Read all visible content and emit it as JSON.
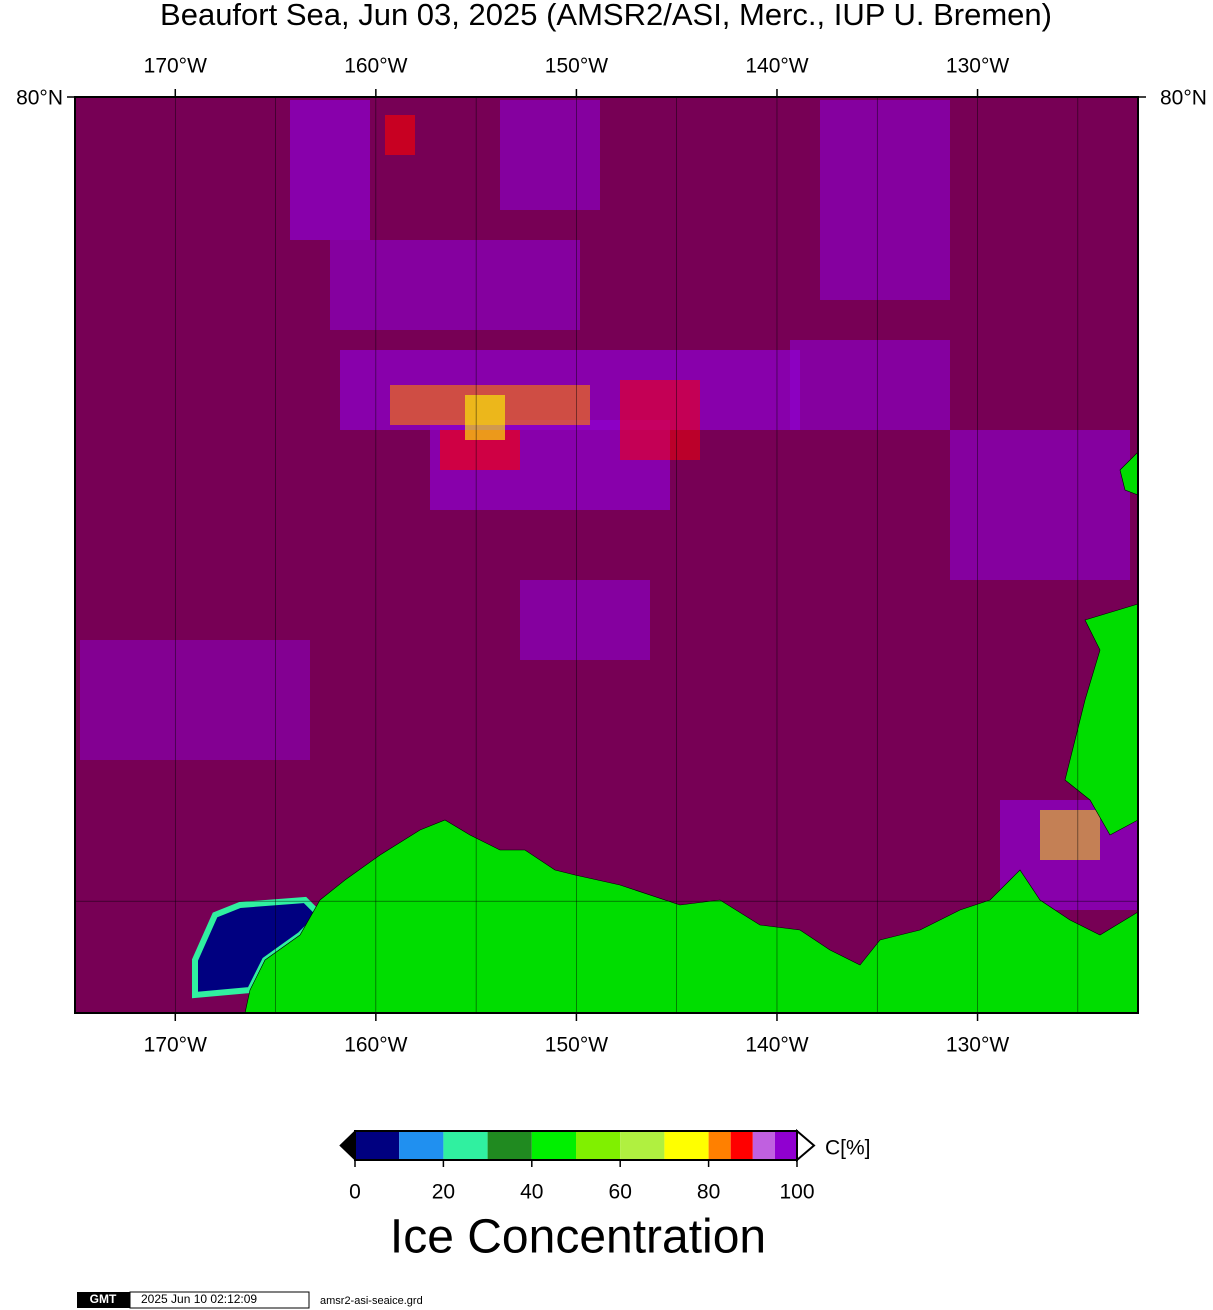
{
  "title": "Beaufort Sea, Jun 03, 2025 (AMSR2/ASI, Merc., IUP U. Bremen)",
  "map": {
    "xlim": [
      -175,
      -122
    ],
    "ylim": [
      68,
      80
    ],
    "xticks": [
      {
        "value": -170,
        "label": "170°W"
      },
      {
        "value": -160,
        "label": "160°W"
      },
      {
        "value": -150,
        "label": "150°W"
      },
      {
        "value": -140,
        "label": "140°W"
      },
      {
        "value": -130,
        "label": "130°W"
      }
    ],
    "yticks": [
      {
        "value": 80,
        "label": "80°N"
      }
    ],
    "xgrid": [
      -170,
      -165,
      -160,
      -155,
      -150,
      -145,
      -140,
      -135,
      -130,
      -125
    ],
    "ygrid": [
      70
    ],
    "ocean_color": "#770055",
    "land_color": "#00dd00"
  },
  "colorbar": {
    "label": "C[%]",
    "title": "Ice Concentration",
    "bins": [
      0,
      10,
      20,
      30,
      40,
      50,
      60,
      70,
      80,
      85,
      90,
      95,
      100
    ],
    "colors": [
      "#000080",
      "#2090f0",
      "#30f0a0",
      "#208a20",
      "#00f000",
      "#80f000",
      "#b0f040",
      "#ffff00",
      "#ff8000",
      "#ff0000",
      "#c060e0",
      "#9000d0"
    ],
    "ticks": [
      0,
      20,
      40,
      60,
      80,
      100
    ]
  },
  "footer": {
    "logo": "GMT",
    "timestamp": "2025 Jun 10 02:12:09",
    "file": "amsr2-asi-seaice.grd"
  }
}
